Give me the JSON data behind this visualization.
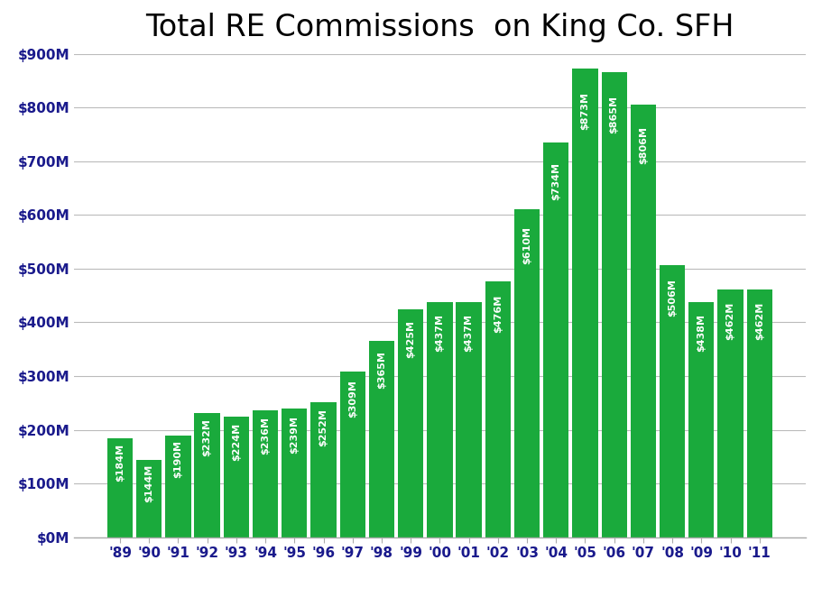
{
  "title": "Total RE Commissions  on King Co. SFH",
  "categories": [
    "'89",
    "'90",
    "'91",
    "'92",
    "'93",
    "'94",
    "'95",
    "'96",
    "'97",
    "'98",
    "'99",
    "'00",
    "'01",
    "'02",
    "'03",
    "'04",
    "'05",
    "'06",
    "'07",
    "'08",
    "'09",
    "'10",
    "'11"
  ],
  "values": [
    184,
    144,
    190,
    232,
    224,
    236,
    239,
    252,
    309,
    365,
    425,
    437,
    437,
    476,
    610,
    734,
    873,
    865,
    806,
    506,
    438,
    462,
    462
  ],
  "labels": [
    "$184M",
    "$144M",
    "$190M",
    "$232M",
    "$224M",
    "$236M",
    "$239M",
    "$252M",
    "$309M",
    "$365M",
    "$425M",
    "$437M",
    "$437M",
    "$476M",
    "$610M",
    "$734M",
    "$873M",
    "$865M",
    "$806M",
    "$506M",
    "$438M",
    "$462M",
    "$462M"
  ],
  "bar_color": "#1aaa3c",
  "background_color": "#ffffff",
  "ylim": [
    0,
    900
  ],
  "yticks": [
    0,
    100,
    200,
    300,
    400,
    500,
    600,
    700,
    800,
    900
  ],
  "ytick_labels": [
    "$0M",
    "$100M",
    "$200M",
    "$300M",
    "$400M",
    "$500M",
    "$600M",
    "$700M",
    "$800M",
    "$900M"
  ],
  "title_fontsize": 24,
  "label_fontsize": 8.0,
  "tick_fontsize": 11,
  "grid_color": "#bbbbbb",
  "axis_text_color": "#1a1a8c",
  "bar_width": 0.88
}
